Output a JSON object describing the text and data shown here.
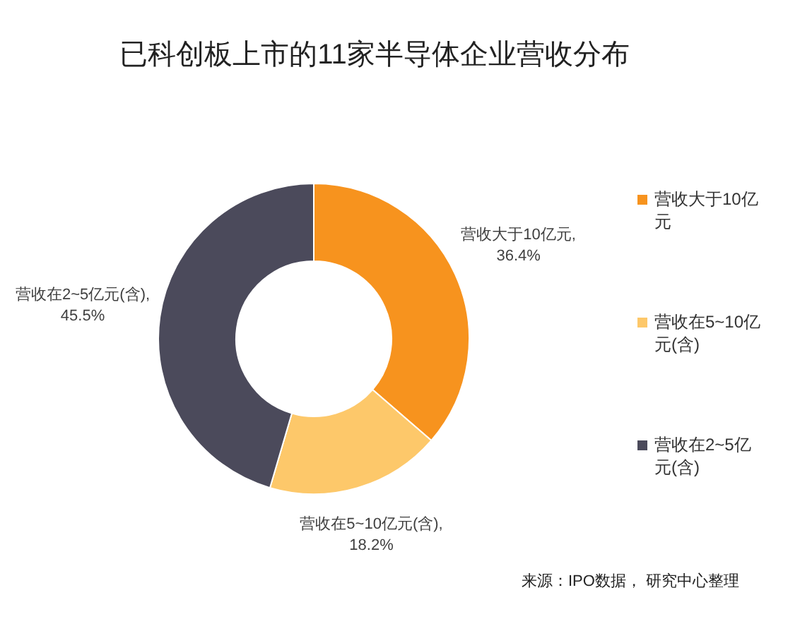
{
  "chart_data": {
    "type": "donut",
    "title": "已科创板上市的11家半导体企业营收分布",
    "categories": [
      "营收大于10亿元",
      "营收在5~10亿元(含)",
      "营收在2~5亿元(含)"
    ],
    "values": [
      36.4,
      18.2,
      45.5
    ],
    "colors": [
      "#f7931e",
      "#fdc86a",
      "#4b4a5b"
    ],
    "value_labels": [
      "营收大于10亿元, 36.4%",
      "营收在5~10亿元(含), 18.2%",
      "营收在2~5亿元(含), 45.5%"
    ],
    "legend": "right",
    "annotations": [
      "来源：IPO数据， 研究中心整理"
    ]
  }
}
